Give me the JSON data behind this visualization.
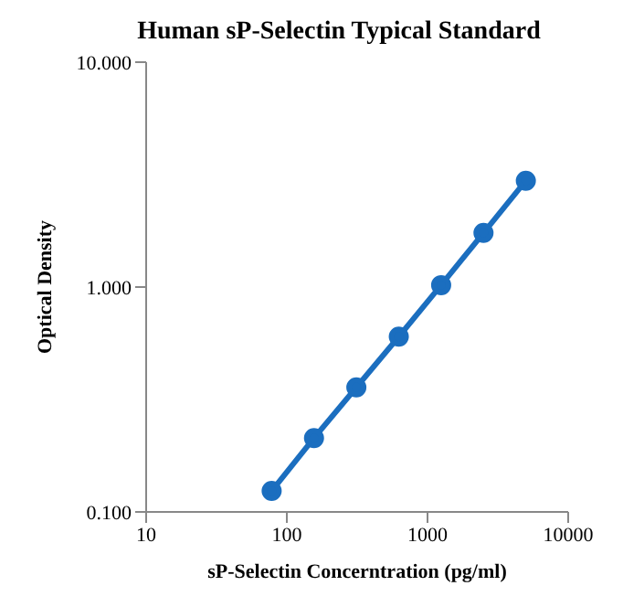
{
  "chart_data": {
    "type": "line",
    "title": "Human sP-Selectin Typical Standard",
    "xlabel": "sP-Selectin Concerntration (pg/ml)",
    "ylabel": "Optical Density",
    "x": [
      78,
      156,
      312,
      625,
      1250,
      2500,
      5000
    ],
    "series": [
      {
        "color": "#1b6ebf",
        "values": [
          0.124,
          0.213,
          0.358,
          0.602,
          1.02,
          1.74,
          2.97
        ]
      }
    ],
    "log": "xy",
    "xlim": [
      10,
      10000
    ],
    "xticks": [
      10,
      100,
      1000,
      10000
    ],
    "ylim": [
      0.1,
      10
    ],
    "yticks": [
      {
        "value": 0.1,
        "label": "0.100"
      },
      {
        "value": 1,
        "label": "1.000"
      },
      {
        "value": 10,
        "label": "10.000"
      }
    ],
    "grid": false,
    "legend": false,
    "marker": "circle",
    "line_style": "solid"
  }
}
